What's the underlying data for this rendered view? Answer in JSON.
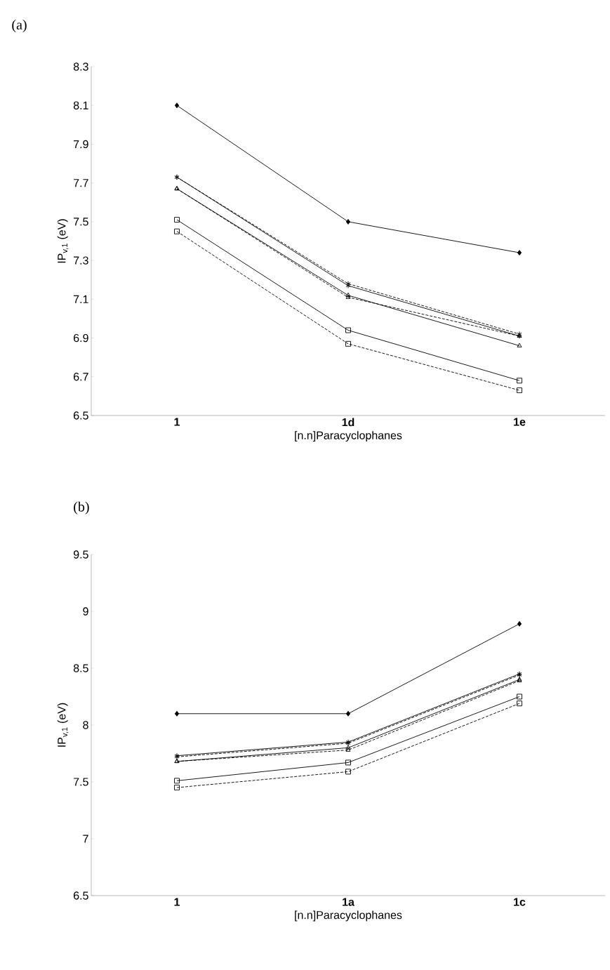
{
  "chart_data": [
    {
      "type": "line",
      "title": "(a)",
      "xlabel": "[n.n]Paracyclophanes",
      "ylabel": "IP$_{v,1}$ (eV)",
      "categories": [
        "1",
        "1d",
        "1e"
      ],
      "ylim": [
        6.5,
        8.3
      ],
      "yticks": [
        6.5,
        6.7,
        6.9,
        7.1,
        7.3,
        7.5,
        7.7,
        7.9,
        8.1,
        8.3
      ],
      "grid": false,
      "legend": false,
      "series": [
        {
          "color": "#000000",
          "marker": "diamond",
          "line_style": "solid",
          "values": [
            8.1,
            7.5,
            7.34
          ]
        },
        {
          "color": "#000000",
          "marker": "cross",
          "line_style": "solid",
          "values": [
            7.73,
            7.17,
            6.91
          ]
        },
        {
          "color": "#000000",
          "marker": "cross",
          "line_style": "dashed",
          "values": [
            7.73,
            7.18,
            6.92
          ]
        },
        {
          "color": "#000000",
          "marker": "triangle",
          "line_style": "solid",
          "values": [
            7.67,
            7.12,
            6.86
          ]
        },
        {
          "color": "#000000",
          "marker": "triangle",
          "line_style": "dashed",
          "values": [
            7.67,
            7.11,
            6.91
          ]
        },
        {
          "color": "#000000",
          "marker": "square",
          "line_style": "solid",
          "values": [
            7.51,
            6.94,
            6.68
          ]
        },
        {
          "color": "#000000",
          "marker": "square",
          "line_style": "dashed",
          "values": [
            7.45,
            6.87,
            6.63
          ]
        }
      ]
    },
    {
      "type": "line",
      "title": "(b)",
      "xlabel": "[n.n]Paracyclophanes",
      "ylabel": "IP$_{v,1}$ (eV)",
      "categories": [
        "1",
        "1a",
        "1c"
      ],
      "ylim": [
        6.5,
        9.5
      ],
      "yticks": [
        6.5,
        7,
        7.5,
        8,
        8.5,
        9,
        9.5
      ],
      "grid": false,
      "legend": false,
      "series": [
        {
          "color": "#000000",
          "marker": "diamond",
          "line_style": "solid",
          "values": [
            8.1,
            8.1,
            8.89
          ]
        },
        {
          "color": "#000000",
          "marker": "cross",
          "line_style": "solid",
          "values": [
            7.73,
            7.85,
            8.45
          ]
        },
        {
          "color": "#000000",
          "marker": "cross",
          "line_style": "dashed",
          "values": [
            7.72,
            7.84,
            8.44
          ]
        },
        {
          "color": "#000000",
          "marker": "triangle",
          "line_style": "solid",
          "values": [
            7.68,
            7.8,
            8.4
          ]
        },
        {
          "color": "#000000",
          "marker": "triangle",
          "line_style": "dashed",
          "values": [
            7.68,
            7.78,
            8.39
          ]
        },
        {
          "color": "#000000",
          "marker": "square",
          "line_style": "solid",
          "values": [
            7.51,
            7.67,
            8.25
          ]
        },
        {
          "color": "#000000",
          "marker": "square",
          "line_style": "dashed",
          "values": [
            7.45,
            7.59,
            8.19
          ]
        }
      ]
    }
  ]
}
